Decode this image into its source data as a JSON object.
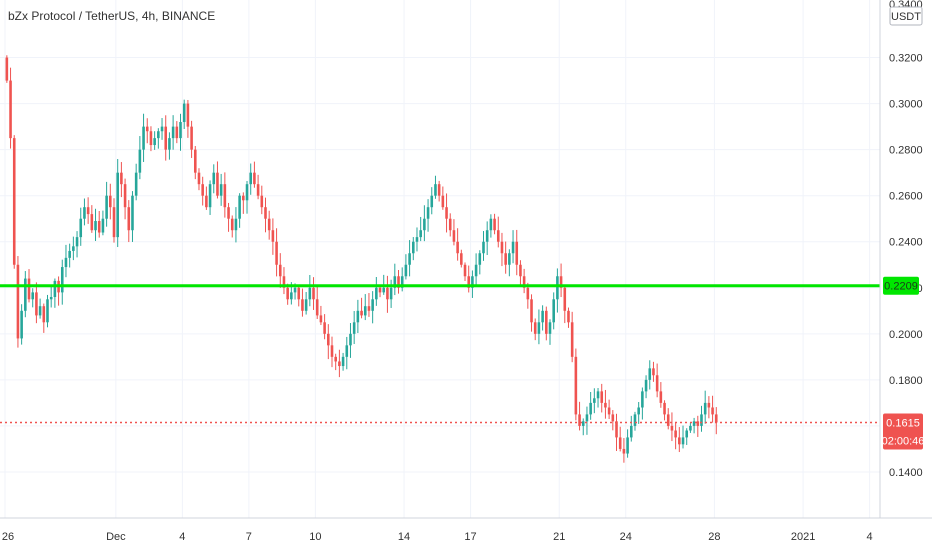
{
  "header": {
    "title": "bZx Protocol / TetherUS, 4h, BINANCE"
  },
  "colors": {
    "up": "#26a69a",
    "down": "#ef5350",
    "grid": "#f0f3fa",
    "axis_text": "#333333",
    "support_line": "#00e600",
    "price_line": "#ef5350"
  },
  "price_axis": {
    "currency_label": "USDT",
    "top_partial_label": "0.3400",
    "ticks": [
      "0.3200",
      "0.3000",
      "0.2800",
      "0.2600",
      "0.2400",
      "0.2200",
      "0.2000",
      "0.1800",
      "0.1600",
      "0.1400"
    ]
  },
  "time_axis": {
    "labels": [
      "26",
      "Dec",
      "4",
      "7",
      "10",
      "14",
      "17",
      "21",
      "24",
      "28",
      "2021",
      "4"
    ]
  },
  "markers": {
    "support_level": "0.2209",
    "last_price": "0.1615",
    "countdown": "02:00:46"
  },
  "chart_data": {
    "type": "candlestick",
    "title": "bZx Protocol / TetherUS, 4h, BINANCE",
    "ylim": [
      0.12,
      0.345
    ],
    "grid": true,
    "support_line": 0.2209,
    "last_price": 0.1615,
    "time_labels": [
      "26",
      "Dec",
      "4",
      "7",
      "10",
      "14",
      "17",
      "21",
      "24",
      "28",
      "2021",
      "4"
    ],
    "time_label_bars": [
      0,
      30,
      48,
      66,
      84,
      108,
      126,
      150,
      168,
      192,
      216,
      234
    ],
    "closes": [
      0.31,
      0.285,
      0.23,
      0.198,
      0.21,
      0.224,
      0.215,
      0.218,
      0.208,
      0.212,
      0.205,
      0.215,
      0.216,
      0.223,
      0.218,
      0.229,
      0.233,
      0.236,
      0.238,
      0.242,
      0.25,
      0.255,
      0.252,
      0.245,
      0.249,
      0.244,
      0.25,
      0.26,
      0.255,
      0.242,
      0.27,
      0.265,
      0.255,
      0.245,
      0.26,
      0.27,
      0.28,
      0.29,
      0.288,
      0.282,
      0.285,
      0.288,
      0.29,
      0.28,
      0.285,
      0.29,
      0.285,
      0.292,
      0.3,
      0.29,
      0.28,
      0.27,
      0.265,
      0.26,
      0.255,
      0.265,
      0.27,
      0.26,
      0.265,
      0.255,
      0.25,
      0.245,
      0.25,
      0.26,
      0.258,
      0.265,
      0.27,
      0.265,
      0.26,
      0.255,
      0.25,
      0.245,
      0.24,
      0.23,
      0.225,
      0.22,
      0.215,
      0.218,
      0.22,
      0.215,
      0.21,
      0.215,
      0.22,
      0.215,
      0.208,
      0.205,
      0.2,
      0.195,
      0.19,
      0.188,
      0.186,
      0.19,
      0.195,
      0.2,
      0.205,
      0.21,
      0.208,
      0.212,
      0.21,
      0.215,
      0.22,
      0.218,
      0.22,
      0.215,
      0.22,
      0.225,
      0.22,
      0.225,
      0.23,
      0.235,
      0.24,
      0.242,
      0.245,
      0.25,
      0.255,
      0.26,
      0.265,
      0.26,
      0.255,
      0.25,
      0.245,
      0.24,
      0.235,
      0.23,
      0.225,
      0.22,
      0.225,
      0.23,
      0.235,
      0.24,
      0.245,
      0.25,
      0.245,
      0.24,
      0.235,
      0.23,
      0.235,
      0.24,
      0.23,
      0.225,
      0.22,
      0.215,
      0.205,
      0.2,
      0.205,
      0.21,
      0.2,
      0.205,
      0.215,
      0.225,
      0.22,
      0.21,
      0.205,
      0.19,
      0.165,
      0.16,
      0.162,
      0.165,
      0.17,
      0.172,
      0.175,
      0.17,
      0.168,
      0.165,
      0.162,
      0.155,
      0.15,
      0.148,
      0.155,
      0.16,
      0.165,
      0.168,
      0.175,
      0.18,
      0.185,
      0.182,
      0.175,
      0.17,
      0.165,
      0.16,
      0.158,
      0.155,
      0.152,
      0.155,
      0.158,
      0.16,
      0.162,
      0.16,
      0.165,
      0.17,
      0.168,
      0.165,
      0.1615
    ]
  }
}
